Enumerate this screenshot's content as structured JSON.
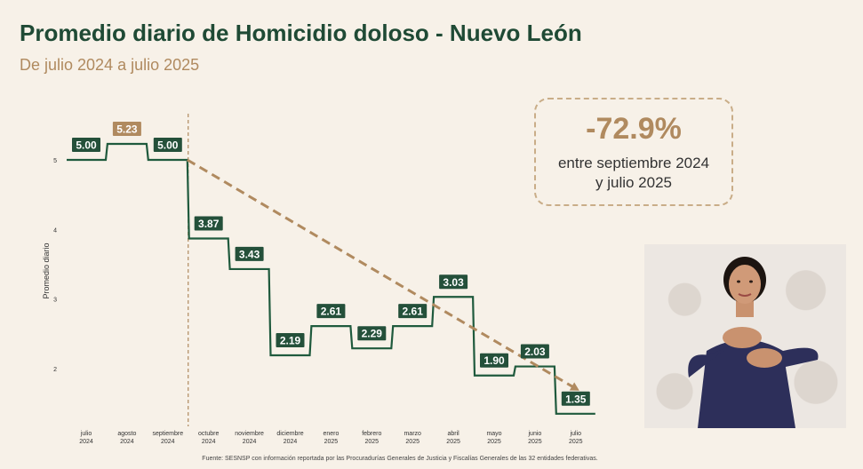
{
  "header": {
    "title": "Promedio diario de Homicidio doloso - Nuevo León",
    "subtitle": "De julio 2024 a julio 2025"
  },
  "callout": {
    "value": "-72.9%",
    "text": "entre septiembre 2024 y julio 2025"
  },
  "footer": {
    "source": "Fuente: SESNSP con información reportada por las Procuradurías Generales de Justicia y Fiscalías Generales de las 32 entidades federativas."
  },
  "chart_data": {
    "type": "line",
    "step": true,
    "categories": [
      [
        "julio",
        "2024"
      ],
      [
        "agosto",
        "2024"
      ],
      [
        "septiembre",
        "2024"
      ],
      [
        "octubre",
        "2024"
      ],
      [
        "noviembre",
        "2024"
      ],
      [
        "diciembre",
        "2024"
      ],
      [
        "enero",
        "2025"
      ],
      [
        "febrero",
        "2025"
      ],
      [
        "marzo",
        "2025"
      ],
      [
        "abril",
        "2025"
      ],
      [
        "mayo",
        "2025"
      ],
      [
        "junio",
        "2025"
      ],
      [
        "julio",
        "2025"
      ]
    ],
    "values": [
      5.0,
      5.23,
      5.0,
      3.87,
      3.43,
      2.19,
      2.61,
      2.29,
      2.61,
      3.03,
      1.9,
      2.03,
      1.35
    ],
    "value_labels": [
      "5.00",
      "5.23",
      "5.00",
      "3.87",
      "3.43",
      "2.19",
      "2.61",
      "2.29",
      "2.61",
      "3.03",
      "1.90",
      "2.03",
      "1.35"
    ],
    "ylabel": "Promedio diario",
    "xlabel": "",
    "yticks": [
      2,
      3,
      4,
      5
    ],
    "ylim": [
      1.3,
      5.6
    ],
    "highlight_index": 1,
    "trend": {
      "from_index": 2,
      "to_index": 12
    },
    "divider_after_index": 2,
    "colors": {
      "line": "#1f5a3d",
      "label_bg": "#24503a",
      "highlight_bg": "#b08a5f",
      "trend": "#b08a5f",
      "text": "#ffffff"
    }
  }
}
